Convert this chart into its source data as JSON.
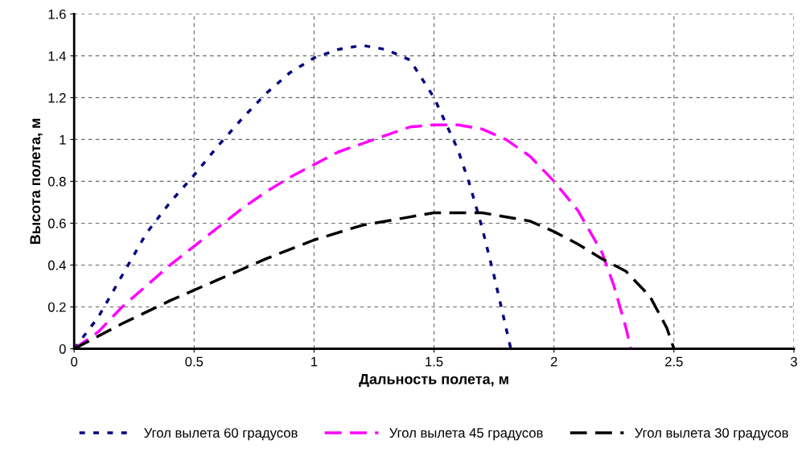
{
  "chart_data": {
    "type": "line",
    "xlabel": "Дальность полета, м",
    "ylabel": "Высота полета, м",
    "xlim": [
      0,
      3
    ],
    "xticks": [
      0,
      0.5,
      1,
      1.5,
      2,
      2.5,
      3
    ],
    "ylim": [
      0,
      1.6
    ],
    "yticks": [
      0,
      0.2,
      0.4,
      0.6,
      0.8,
      1,
      1.2,
      1.4,
      1.6
    ],
    "grid": true,
    "legend": "bottom",
    "marker": "none",
    "series": [
      {
        "name": "Угол вылета 60 градусов",
        "color": "#000080",
        "line_style": "dotted",
        "x": [
          0,
          0.1,
          0.2,
          0.3,
          0.4,
          0.5,
          0.6,
          0.7,
          0.8,
          0.9,
          1.0,
          1.1,
          1.2,
          1.3,
          1.4,
          1.5,
          1.6,
          1.65,
          1.7,
          1.75,
          1.8,
          1.82
        ],
        "values": [
          0,
          0.15,
          0.35,
          0.55,
          0.7,
          0.83,
          0.97,
          1.1,
          1.22,
          1.32,
          1.39,
          1.43,
          1.45,
          1.43,
          1.38,
          1.2,
          0.95,
          0.78,
          0.58,
          0.35,
          0.1,
          0
        ]
      },
      {
        "name": "Угол вылета 45 градусов",
        "color": "#ff00ff",
        "line_style": "dashed",
        "x": [
          0,
          0.1,
          0.2,
          0.3,
          0.4,
          0.5,
          0.6,
          0.7,
          0.8,
          0.9,
          1.0,
          1.1,
          1.2,
          1.3,
          1.4,
          1.5,
          1.6,
          1.7,
          1.8,
          1.9,
          2.0,
          2.1,
          2.2,
          2.25,
          2.3,
          2.32
        ],
        "values": [
          0,
          0.08,
          0.2,
          0.3,
          0.4,
          0.49,
          0.58,
          0.67,
          0.75,
          0.82,
          0.88,
          0.94,
          0.98,
          1.02,
          1.06,
          1.07,
          1.07,
          1.05,
          1.0,
          0.92,
          0.8,
          0.66,
          0.46,
          0.3,
          0.1,
          0
        ]
      },
      {
        "name": "Угол вылета 30 градусов",
        "color": "#000000",
        "line_style": "dashed",
        "x": [
          0,
          0.2,
          0.4,
          0.5,
          0.6,
          0.8,
          1.0,
          1.2,
          1.4,
          1.5,
          1.7,
          1.9,
          2.0,
          2.1,
          2.2,
          2.3,
          2.4,
          2.47,
          2.5
        ],
        "values": [
          0,
          0.12,
          0.23,
          0.28,
          0.33,
          0.43,
          0.52,
          0.59,
          0.63,
          0.65,
          0.65,
          0.61,
          0.56,
          0.5,
          0.43,
          0.37,
          0.25,
          0.1,
          0
        ]
      }
    ]
  }
}
